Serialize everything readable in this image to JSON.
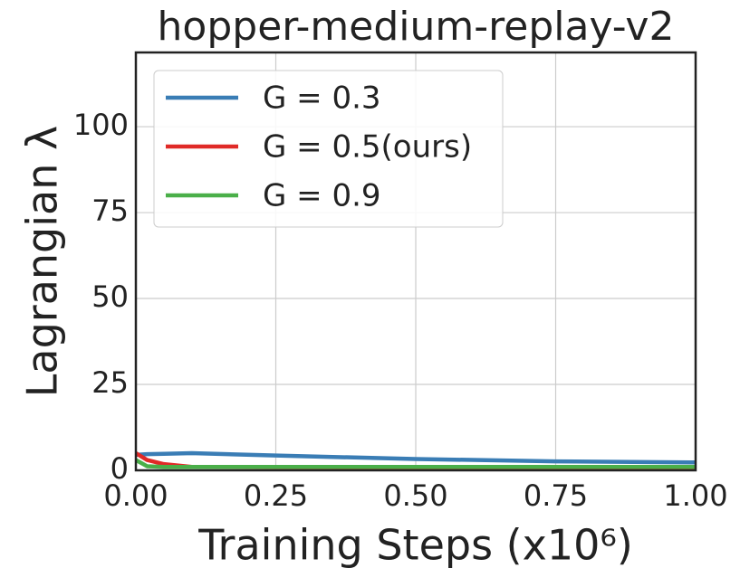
{
  "chart_data": {
    "type": "line",
    "title": "hopper-medium-replay-v2",
    "x_label": "Training Steps (x10⁶)",
    "y_label": "Lagrangian λ",
    "x": [
      0,
      0.02,
      0.05,
      0.1,
      0.25,
      0.5,
      0.75,
      1.0
    ],
    "series": [
      {
        "name": "G = 0.3",
        "color": "#3a7db5",
        "values": [
          4.5,
          4.7,
          4.8,
          5.0,
          4.3,
          3.3,
          2.6,
          2.3
        ]
      },
      {
        "name": "G = 0.5(ours)",
        "color": "#e02a27",
        "values": [
          5.0,
          3.0,
          1.8,
          1.0,
          0.9,
          0.8,
          0.8,
          0.8
        ]
      },
      {
        "name": "G = 0.9",
        "color": "#4aaf49",
        "values": [
          3.0,
          1.2,
          1.0,
          1.0,
          1.0,
          1.0,
          1.0,
          1.0
        ]
      }
    ],
    "xlim": [
      0,
      1
    ],
    "ylim": [
      0,
      121.6
    ],
    "xticks": [
      {
        "value": 0,
        "label": "0.00"
      },
      {
        "value": 0.25,
        "label": "0.25"
      },
      {
        "value": 0.5,
        "label": "0.50"
      },
      {
        "value": 0.75,
        "label": "0.75"
      },
      {
        "value": 1,
        "label": "1.00"
      }
    ],
    "yticks": [
      0,
      25,
      50,
      75,
      100
    ],
    "grid": true,
    "legend": "upper left"
  }
}
